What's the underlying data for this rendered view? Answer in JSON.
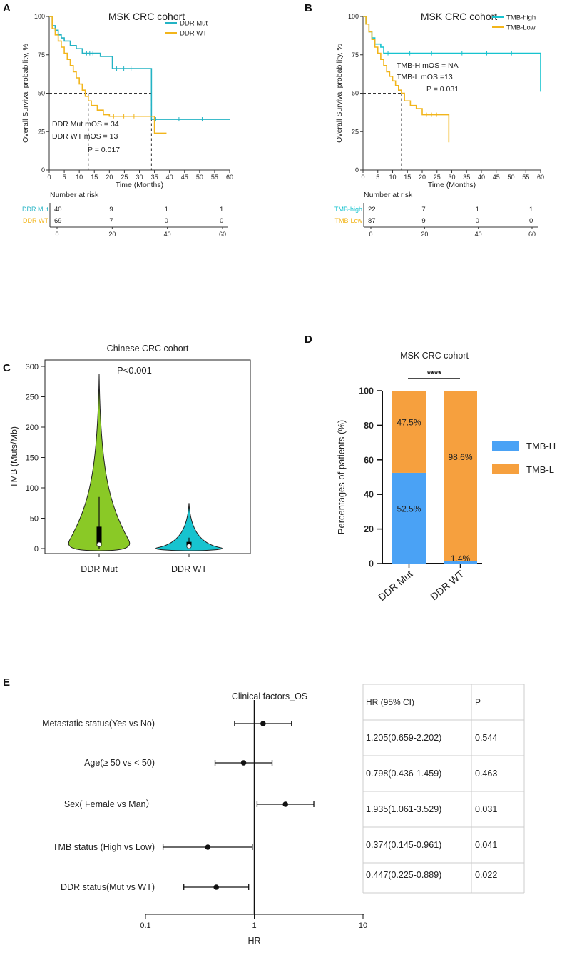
{
  "colors": {
    "teal": "#23b3c4",
    "gold": "#f2b51b",
    "green": "#8ac926",
    "cyan": "#17c3cf",
    "blue": "#4aa2f5",
    "orange": "#f6a03e"
  },
  "panels": {
    "A": "A",
    "B": "B",
    "C": "C",
    "D": "D",
    "E": "E"
  },
  "chart_data": [
    {
      "id": "A",
      "type": "line",
      "title": "MSK CRC cohort",
      "xlabel": "Time (Months)",
      "ylabel": "Overall Survival probability, %",
      "xlim": [
        0,
        60
      ],
      "ylim": [
        0,
        100
      ],
      "xticks": [
        "0",
        "5",
        "10",
        "15",
        "20",
        "25",
        "30",
        "35",
        "40",
        "45",
        "50",
        "55",
        "60"
      ],
      "yticks": [
        "0",
        "25",
        "50",
        "75",
        "100"
      ],
      "series": [
        {
          "name": "DDR Mut",
          "x": [
            0,
            1,
            2,
            3,
            4,
            5,
            7,
            9,
            11,
            17,
            21,
            31,
            34,
            60
          ],
          "y": [
            100,
            94,
            91,
            88,
            86,
            84,
            81,
            79,
            76,
            74,
            66,
            66,
            33,
            33
          ]
        },
        {
          "name": "DDR WT",
          "x": [
            0,
            1,
            2,
            3,
            4,
            5,
            6,
            7,
            8,
            9,
            10,
            11,
            12,
            13,
            14,
            16,
            18,
            20,
            33,
            35,
            39
          ],
          "y": [
            100,
            92,
            88,
            84,
            80,
            76,
            72,
            68,
            64,
            60,
            56,
            52,
            48,
            45,
            42,
            39,
            36,
            35,
            35,
            24,
            24
          ]
        }
      ],
      "median_lines": [
        13,
        34
      ],
      "annotations": [
        "DDR Mut mOS = 34",
        "DDR WT mOS = 13",
        "P = 0.017"
      ],
      "risk_table": {
        "heading": "Number at risk",
        "rows": [
          {
            "label": "DDR Mut",
            "values": [
              "40",
              "9",
              "1",
              "1"
            ]
          },
          {
            "label": "DDR WT",
            "values": [
              "69",
              "7",
              "0",
              "0"
            ]
          }
        ],
        "ticks": [
          "0",
          "20",
          "40",
          "60"
        ]
      }
    },
    {
      "id": "B",
      "type": "line",
      "title": "MSK CRC cohort",
      "xlabel": "Time (Months)",
      "ylabel": "Overall Survival probability, %",
      "xlim": [
        0,
        60
      ],
      "ylim": [
        0,
        100
      ],
      "xticks": [
        "0",
        "5",
        "10",
        "15",
        "20",
        "25",
        "30",
        "35",
        "40",
        "45",
        "50",
        "55",
        "60"
      ],
      "yticks": [
        "0",
        "25",
        "50",
        "75",
        "100"
      ],
      "series": [
        {
          "name": "TMB-high",
          "x": [
            0,
            1,
            2,
            3,
            4,
            6,
            7,
            32,
            60
          ],
          "y": [
            100,
            95,
            90,
            86,
            82,
            80,
            76,
            76,
            51
          ]
        },
        {
          "name": "TMB-Low",
          "x": [
            0,
            1,
            2,
            3,
            4,
            5,
            6,
            7,
            8,
            9,
            10,
            11,
            12,
            13,
            14,
            16,
            18,
            20,
            28,
            29
          ],
          "y": [
            100,
            95,
            90,
            85,
            80,
            76,
            72,
            68,
            64,
            61,
            58,
            55,
            52,
            50,
            45,
            42,
            40,
            36,
            36,
            18
          ]
        }
      ],
      "median_lines": [
        13
      ],
      "annotations": [
        "TMB-H mOS = NA",
        "TMB-L mOS =13",
        "P = 0.031"
      ],
      "risk_table": {
        "heading": "Number at risk",
        "rows": [
          {
            "label": "TMB-high",
            "values": [
              "22",
              "7",
              "1",
              "1"
            ]
          },
          {
            "label": "TMB-Low",
            "values": [
              "87",
              "9",
              "0",
              "0"
            ]
          }
        ],
        "ticks": [
          "0",
          "20",
          "40",
          "60"
        ]
      }
    },
    {
      "id": "C",
      "type": "violin",
      "title": "Chinese CRC cohort",
      "ylabel": "TMB (Muts/Mb)",
      "ylim": [
        0,
        300
      ],
      "yticks": [
        "0",
        "50",
        "100",
        "150",
        "200",
        "250",
        "300"
      ],
      "categories": [
        "DDR Mut",
        "DDR WT"
      ],
      "max": [
        288,
        75
      ],
      "median": [
        8,
        5
      ],
      "q1": [
        5,
        3
      ],
      "q3": [
        36,
        11
      ],
      "whisker_high": [
        85,
        18
      ],
      "annotation": "P<0.001"
    },
    {
      "id": "D",
      "type": "bar",
      "title": "MSK CRC cohort",
      "ylabel": "Percentages of patients (%)",
      "ylim": [
        0,
        100
      ],
      "yticks": [
        "0",
        "20",
        "40",
        "60",
        "80",
        "100"
      ],
      "categories": [
        "DDR Mut",
        "DDR WT"
      ],
      "series": [
        {
          "name": "TMB-H",
          "values": [
            52.5,
            1.4
          ]
        },
        {
          "name": "TMB-L",
          "values": [
            47.5,
            98.6
          ]
        }
      ],
      "labels": [
        [
          "52.5%",
          "1.4%"
        ],
        [
          "47.5%",
          "98.6%"
        ]
      ],
      "significance": "****"
    },
    {
      "id": "E",
      "type": "forest",
      "title": "Clinical factors_OS",
      "xlabel": "HR",
      "xscale": "log",
      "xticks": [
        "0.1",
        "1",
        "10"
      ],
      "rows": [
        {
          "label": "Metastatic status(Yes vs No)",
          "hr": 1.205,
          "lo": 0.659,
          "hi": 2.202,
          "ci": "1.205(0.659-2.202)",
          "p": "0.544"
        },
        {
          "label": "Age(≥ 50 vs < 50)",
          "hr": 0.798,
          "lo": 0.436,
          "hi": 1.459,
          "ci": "0.798(0.436-1.459)",
          "p": "0.463"
        },
        {
          "label": "Sex( Female vs Man）",
          "hr": 1.935,
          "lo": 1.061,
          "hi": 3.529,
          "ci": "1.935(1.061-3.529)",
          "p": "0.031"
        },
        {
          "label": "TMB status (High vs Low)",
          "hr": 0.374,
          "lo": 0.145,
          "hi": 0.961,
          "ci": "0.374(0.145-0.961)",
          "p": "0.041"
        },
        {
          "label": "DDR status(Mut vs WT)",
          "hr": 0.447,
          "lo": 0.225,
          "hi": 0.889,
          "ci": "0.447(0.225-0.889)",
          "p": "0.022"
        }
      ],
      "table_headers": [
        "HR (95% CI)",
        "P"
      ]
    }
  ]
}
